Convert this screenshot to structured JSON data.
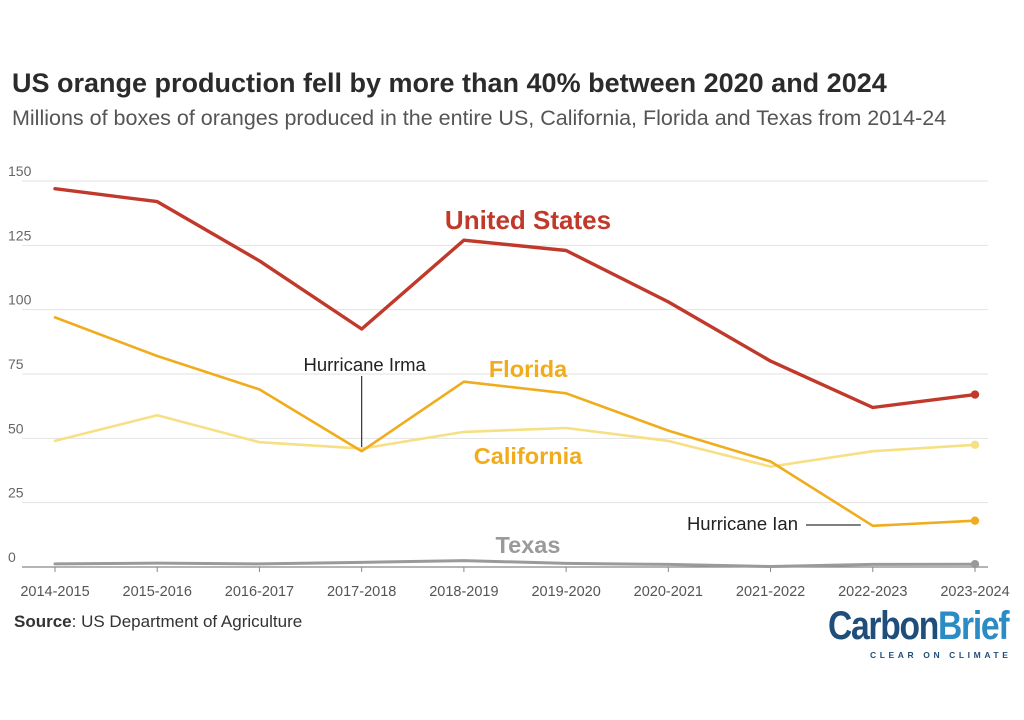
{
  "header": {
    "title": "US orange production fell by more than 40% between 2020 and 2024",
    "subtitle": "Millions of boxes of oranges produced in the entire US, California, Florida and Texas from 2014-24"
  },
  "footer": {
    "source_label": "Source",
    "source_text": ": US Department of Agriculture",
    "logo_part1": "Carbon",
    "logo_part2": "Brief",
    "logo_tagline": "CLEAR ON CLIMATE"
  },
  "colors": {
    "united_states": "#c0392b",
    "florida": "#f0ac1c",
    "california": "#f7df83",
    "texas": "#9a9a9a",
    "grid": "#e2e2e2",
    "axis": "#555555"
  },
  "chart_data": {
    "type": "line",
    "title": "US orange production fell by more than 40% between 2020 and 2024",
    "xlabel": "",
    "ylabel": "",
    "ylim": [
      0,
      150
    ],
    "yticks": [
      0,
      25,
      50,
      75,
      100,
      125,
      150
    ],
    "categories": [
      "2014-2015",
      "2015-2016",
      "2016-2017",
      "2017-2018",
      "2018-2019",
      "2019-2020",
      "2020-2021",
      "2021-2022",
      "2022-2023",
      "2023-2024"
    ],
    "series": [
      {
        "key": "us",
        "name": "United States",
        "color": "#c0392b",
        "values": [
          147,
          142,
          119,
          92.5,
          127,
          123,
          103,
          80,
          62,
          67
        ]
      },
      {
        "key": "fl",
        "name": "Florida",
        "color": "#f0ac1c",
        "values": [
          97,
          82,
          69,
          45,
          72,
          67.5,
          53,
          41,
          16,
          18
        ]
      },
      {
        "key": "ca",
        "name": "California",
        "color": "#f7df83",
        "values": [
          49,
          59,
          48.5,
          46,
          52.5,
          54,
          49,
          39,
          45,
          47.5
        ]
      },
      {
        "key": "tx",
        "name": "Texas",
        "color": "#9a9a9a",
        "values": [
          1.2,
          1.5,
          1.2,
          1.8,
          2.5,
          1.4,
          1.0,
          0.2,
          1.0,
          1.1
        ]
      }
    ],
    "annotations": [
      {
        "text": "Hurricane Irma",
        "category_index": 3
      },
      {
        "text": "Hurricane Ian",
        "category_index": 8
      }
    ]
  }
}
